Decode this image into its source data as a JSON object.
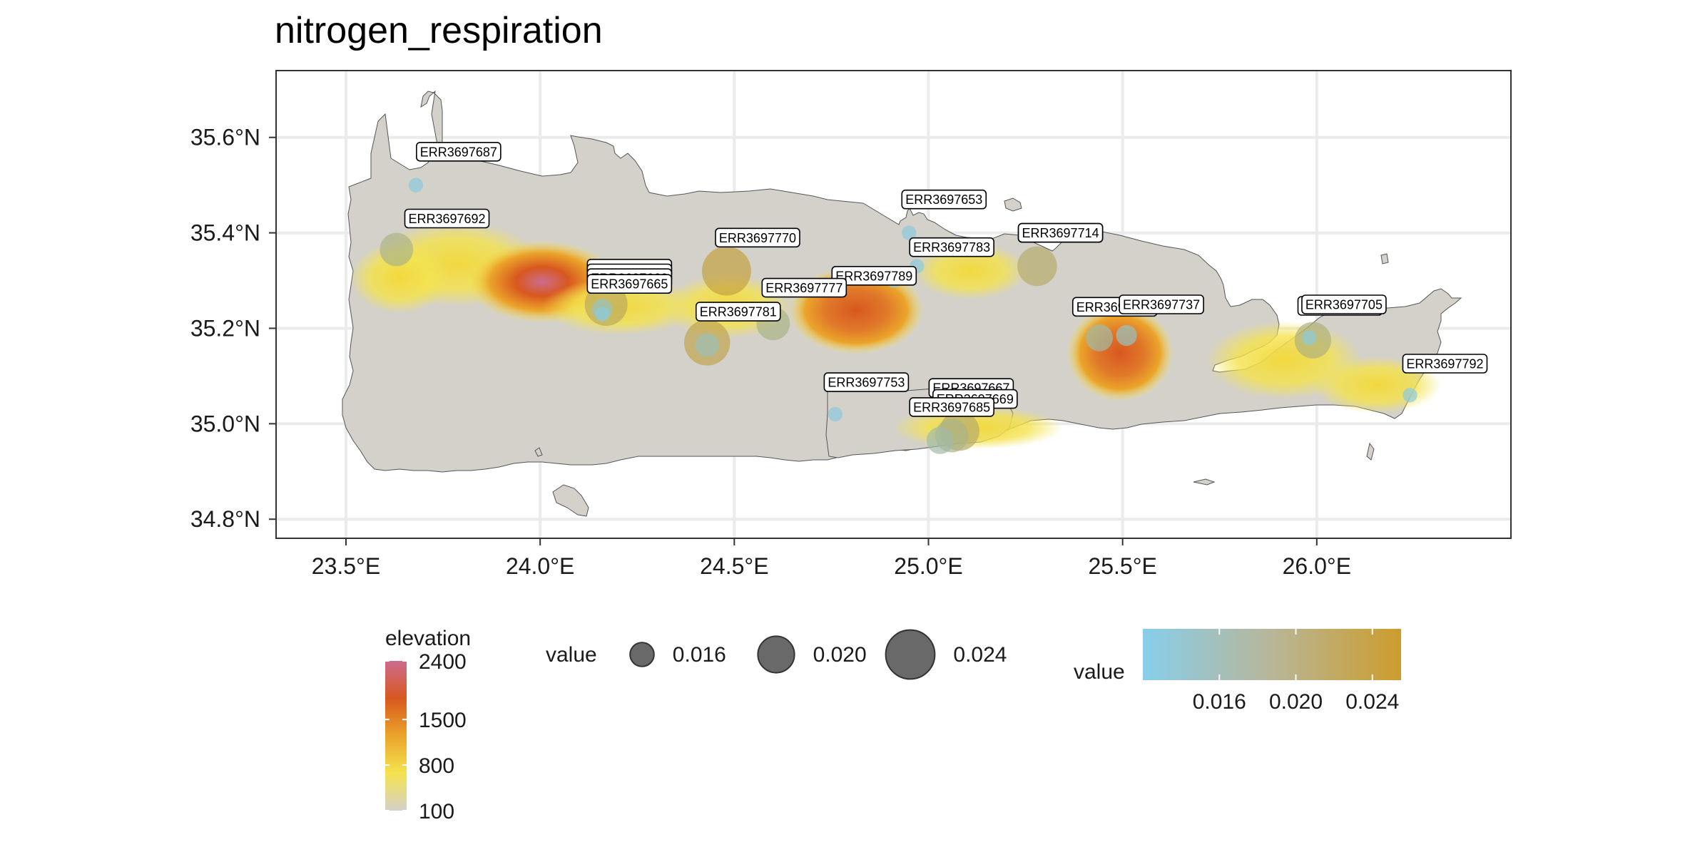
{
  "title": "nitrogen_respiration",
  "map": {
    "x_ticks": [
      {
        "value": 23.5,
        "label": "23.5°E"
      },
      {
        "value": 24.0,
        "label": "24.0°E"
      },
      {
        "value": 24.5,
        "label": "24.5°E"
      },
      {
        "value": 25.0,
        "label": "25.0°E"
      },
      {
        "value": 25.5,
        "label": "25.5°E"
      },
      {
        "value": 26.0,
        "label": "26.0°E"
      }
    ],
    "y_ticks": [
      {
        "value": 34.8,
        "label": "34.8°N"
      },
      {
        "value": 35.0,
        "label": "35.0°N"
      },
      {
        "value": 35.2,
        "label": "35.2°N"
      },
      {
        "value": 35.4,
        "label": "35.4°N"
      },
      {
        "value": 35.6,
        "label": "35.6°N"
      }
    ],
    "xlim": [
      23.32,
      26.5
    ],
    "ylim": [
      34.76,
      35.74
    ],
    "panel_background": "#ffffff",
    "grid_color": "#ebebeb",
    "land_base_color": "#d4d1ca"
  },
  "samples": [
    {
      "id": "ERR3697687",
      "lon": 23.68,
      "lat": 35.5,
      "value": 0.013
    },
    {
      "id": "ERR3697692",
      "lon": 23.63,
      "lat": 35.365,
      "value": 0.019
    },
    {
      "id": "ERR3697770",
      "lon": 24.48,
      "lat": 35.32,
      "value": 0.024
    },
    {
      "id": "ERR3697653",
      "lon": 24.95,
      "lat": 35.4,
      "value": 0.013
    },
    {
      "id": "ERR3697783",
      "lon": 24.97,
      "lat": 35.33,
      "value": 0.013
    },
    {
      "id": "ERR3697714",
      "lon": 25.28,
      "lat": 35.33,
      "value": 0.021
    },
    {
      "id": "ERR3697789",
      "lon": 24.91,
      "lat": 35.3,
      "value": 0.013
    },
    {
      "id": "ERR3697777",
      "lon": 24.6,
      "lat": 35.21,
      "value": 0.019
    },
    {
      "id": "ERR3697781",
      "lon": 24.43,
      "lat": 35.165,
      "value": 0.016
    },
    {
      "id": "ERR3697781",
      "lon": 24.43,
      "lat": 35.17,
      "value": 0.023
    },
    {
      "id": "ERR3697665",
      "lon": 24.17,
      "lat": 35.25,
      "value": 0.022
    },
    {
      "id": "ERR3697668",
      "lon": 24.16,
      "lat": 35.23,
      "value": 0.013
    },
    {
      "id": "ERR3697661",
      "lon": 24.16,
      "lat": 35.24,
      "value": 0.015
    },
    {
      "id": "ERR3697753",
      "lon": 24.76,
      "lat": 35.02,
      "value": 0.013
    },
    {
      "id": "ERR3697667",
      "lon": 25.03,
      "lat": 34.965,
      "value": 0.017
    },
    {
      "id": "ERR3697669",
      "lon": 25.08,
      "lat": 34.985,
      "value": 0.021
    },
    {
      "id": "ERR3697685",
      "lon": 25.06,
      "lat": 34.975,
      "value": 0.019
    },
    {
      "id": "ERR3697737",
      "lon": 25.51,
      "lat": 35.185,
      "value": 0.015
    },
    {
      "id": "ERR3697731",
      "lon": 25.44,
      "lat": 35.18,
      "value": 0.017
    },
    {
      "id": "ERR3697705",
      "lon": 25.99,
      "lat": 35.175,
      "value": 0.02
    },
    {
      "id": "ERR3697703",
      "lon": 25.98,
      "lat": 35.18,
      "value": 0.013
    },
    {
      "id": "ERR3697792",
      "lon": 26.24,
      "lat": 35.06,
      "value": 0.013
    }
  ],
  "labels": [
    {
      "text": "ERR3697687",
      "lon": 23.79,
      "lat": 35.57
    },
    {
      "text": "ERR3697692",
      "lon": 23.76,
      "lat": 35.43
    },
    {
      "text": "ERR3697770",
      "lon": 24.56,
      "lat": 35.39
    },
    {
      "text": "ERR3697653",
      "lon": 25.04,
      "lat": 35.47
    },
    {
      "text": "ERR3697783",
      "lon": 25.06,
      "lat": 35.37
    },
    {
      "text": "ERR3697714",
      "lon": 25.34,
      "lat": 35.4
    },
    {
      "text": "ERR3697714",
      "lon": 25.34,
      "lat": 35.4
    },
    {
      "text": "ERR3697781",
      "lon": 24.23,
      "lat": 35.325
    },
    {
      "text": "ERR3697761",
      "lon": 24.23,
      "lat": 35.315
    },
    {
      "text": "ERR3697668",
      "lon": 24.23,
      "lat": 35.305
    },
    {
      "text": "ERR3697665",
      "lon": 24.23,
      "lat": 35.293
    },
    {
      "text": "ERR3697789",
      "lon": 24.86,
      "lat": 35.31
    },
    {
      "text": "ERR3697777",
      "lon": 24.68,
      "lat": 35.285
    },
    {
      "text": "ERR3697781",
      "lon": 24.51,
      "lat": 35.235
    },
    {
      "text": "ERR3697753",
      "lon": 24.84,
      "lat": 35.087
    },
    {
      "text": "ERR3697667",
      "lon": 25.11,
      "lat": 35.075
    },
    {
      "text": "ERR3697669",
      "lon": 25.12,
      "lat": 35.052
    },
    {
      "text": "ERR3697685",
      "lon": 25.06,
      "lat": 35.035
    },
    {
      "text": "ERR3697731",
      "lon": 25.48,
      "lat": 35.245
    },
    {
      "text": "ERR3697737",
      "lon": 25.6,
      "lat": 35.25
    },
    {
      "text": "ERR3697705",
      "lon": 26.06,
      "lat": 35.247
    },
    {
      "text": "ERR3697705",
      "lon": 26.07,
      "lat": 35.25
    },
    {
      "text": "ERR3697792",
      "lon": 26.33,
      "lat": 35.126
    }
  ],
  "legends": {
    "elevation": {
      "title": "elevation",
      "breaks": [
        {
          "value": 2400,
          "label": "2400"
        },
        {
          "value": 1500,
          "label": "1500"
        },
        {
          "value": 800,
          "label": "800"
        },
        {
          "value": 100,
          "label": "100"
        }
      ],
      "range": [
        100,
        2400
      ],
      "colors": [
        "#d4d1ca",
        "#f4e34e",
        "#eba42a",
        "#d8581f",
        "#cd6b8e"
      ]
    },
    "size": {
      "title": "value",
      "breaks": [
        {
          "value": 0.016,
          "label": "0.016"
        },
        {
          "value": 0.02,
          "label": "0.020"
        },
        {
          "value": 0.024,
          "label": "0.024"
        }
      ],
      "color": "#595959"
    },
    "color": {
      "title": "value",
      "breaks": [
        {
          "value": 0.016,
          "label": "0.016"
        },
        {
          "value": 0.02,
          "label": "0.020"
        },
        {
          "value": 0.024,
          "label": "0.024"
        }
      ],
      "range": [
        0.012,
        0.0255
      ],
      "low": "#87ceeb",
      "high": "#cd9c2d"
    }
  }
}
